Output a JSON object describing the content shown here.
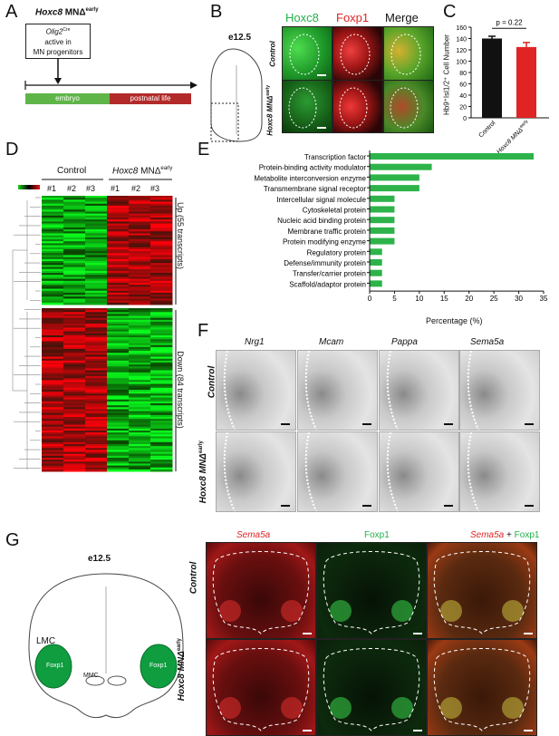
{
  "panels": {
    "A": "A",
    "B": "B",
    "C": "C",
    "D": "D",
    "E": "E",
    "F": "F",
    "G": "G"
  },
  "panelA": {
    "title_gene": "Hoxc8",
    "title_rest": "MNΔ",
    "title_sup": "early",
    "box_line1_gene": "Olig2",
    "box_line1_sup": "Cre",
    "box_line2": "active in",
    "box_line3": "MN progenitors",
    "embryo": "embryo",
    "postnatal": "postnatal life",
    "colors": {
      "embryo": "#5fb548",
      "postnatal": "#b22a2a"
    }
  },
  "panelB": {
    "stage": "e12.5",
    "headers": {
      "hoxc8": "Hoxc8",
      "foxp1": "Foxp1",
      "merge": "Merge"
    },
    "rows": {
      "control": "Control",
      "mutant_gene": "Hoxc8 MNΔ",
      "mutant_sup": "early"
    },
    "colors": {
      "hoxc8": "#22b14c",
      "foxp1": "#e02424"
    }
  },
  "panelC": {
    "pvalue": "p = 0.22",
    "ylabel": "Hb9⁺Isl1/2⁺ Cell Number",
    "yticks": [
      "0",
      "20",
      "40",
      "60",
      "80",
      "100",
      "120",
      "140",
      "160"
    ],
    "xlabels": {
      "control": "Control",
      "mutant_gene": "Hoxc8 MNΔ",
      "mutant_sup": "early"
    }
  },
  "panelD": {
    "group_control": "Control",
    "group_mutant_gene": "Hoxc8",
    "group_mutant_rest": "MNΔ",
    "group_mutant_sup": "early",
    "columns": [
      "#1",
      "#2",
      "#3",
      "#1",
      "#2",
      "#3"
    ],
    "up_label": "Up (55 transcripts)",
    "down_label": "Down (84 transcripts)"
  },
  "panelE": {
    "xlabel": "Percentage (%)",
    "xticks": [
      "0",
      "5",
      "10",
      "15",
      "20",
      "25",
      "30",
      "35"
    ],
    "color": "#2db34a"
  },
  "chart_data": [
    {
      "type": "bar",
      "title": "",
      "ylabel": "Hb9⁺Isl1/2⁺ Cell Number",
      "categories": [
        "Control",
        "Hoxc8 MNΔearly"
      ],
      "values": [
        140,
        125
      ],
      "errors": [
        4,
        8
      ],
      "ylim": [
        0,
        160
      ],
      "colors": [
        "#111111",
        "#e02424"
      ],
      "annotation": "p = 0.22"
    },
    {
      "type": "bar",
      "orientation": "horizontal",
      "xlabel": "Percentage (%)",
      "xlim": [
        0,
        35
      ],
      "categories": [
        "Transcription factor",
        "Protein-binding activity modulator",
        "Metabolite interconversion enzyme",
        "Transmembrane signal receptor",
        "Intercellular signal molecule",
        "Cytoskeletal protein",
        "Nucleic acid binding protein",
        "Membrane traffic protein",
        "Protein modifying enzyme",
        "Regulatory protein",
        "Defense/immunity protein",
        "Transfer/carrier protein",
        "Scaffold/adaptor protein"
      ],
      "values": [
        33,
        12.5,
        10,
        10,
        5,
        5,
        5,
        5,
        5,
        2.5,
        2.5,
        2.5,
        2.5
      ],
      "color": "#2db34a"
    }
  ],
  "panelF": {
    "genes": [
      "Nrg1",
      "Mcam",
      "Pappa",
      "Sema5a"
    ],
    "rows": {
      "control": "Control",
      "mutant_gene": "Hoxc8 MNΔ",
      "mutant_sup": "early"
    }
  },
  "panelG": {
    "stage": "e12.5",
    "lmc": "LMC",
    "mmc": "MMC",
    "foxp1_left": "Foxp1",
    "foxp1_right": "Foxp1",
    "headers": {
      "sema5a": "Sema5a",
      "foxp1": "Foxp1",
      "merge_a": "Sema5a",
      "merge_plus": " + ",
      "merge_b": "Foxp1"
    },
    "rows": {
      "control": "Control",
      "mutant_gene": "Hoxc8 MNΔ",
      "mutant_sup": "early"
    },
    "colors": {
      "lmc_fill": "#0f9d3f"
    }
  }
}
